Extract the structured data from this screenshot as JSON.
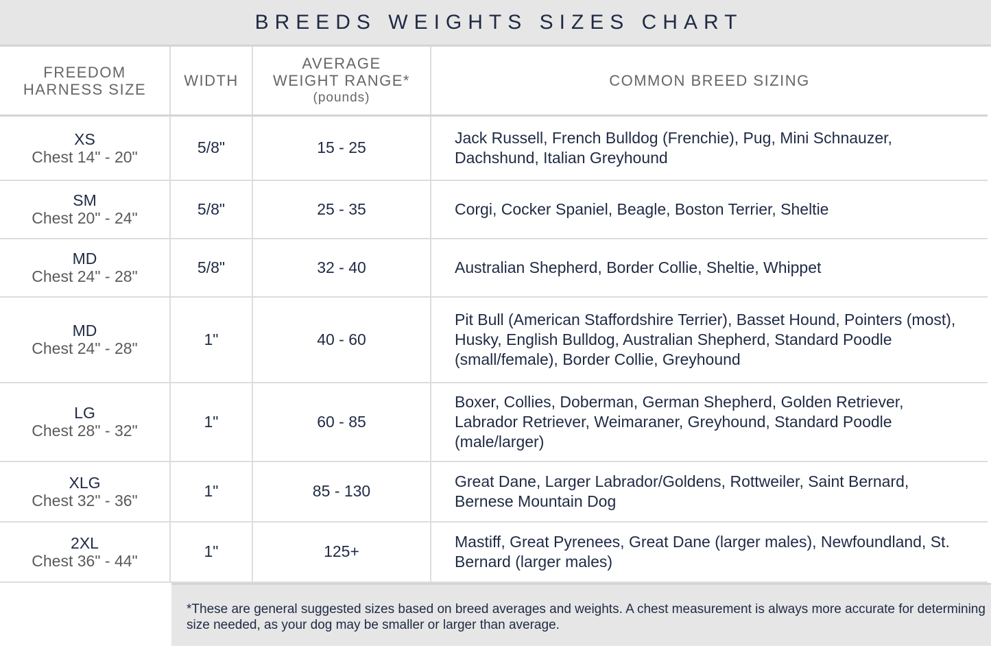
{
  "title": "BREEDS WEIGHTS SIZES CHART",
  "headers": {
    "size": [
      "FREEDOM",
      "HARNESS SIZE"
    ],
    "width": "WIDTH",
    "weight": [
      "AVERAGE",
      "WEIGHT RANGE*",
      "(pounds)"
    ],
    "breeds": "COMMON BREED SIZING"
  },
  "rows": [
    {
      "size": "XS",
      "chest": "Chest 14\" - 20\"",
      "width": "5/8\"",
      "weight": "15 - 25",
      "breeds": "Jack Russell, French Bulldog (Frenchie), Pug, Mini Schnauzer, Dachshund, Italian Greyhound"
    },
    {
      "size": "SM",
      "chest": "Chest 20\" - 24\"",
      "width": "5/8\"",
      "weight": "25 - 35",
      "breeds": "Corgi, Cocker Spaniel, Beagle, Boston Terrier, Sheltie"
    },
    {
      "size": "MD",
      "chest": "Chest 24\" - 28\"",
      "width": "5/8\"",
      "weight": "32 - 40",
      "breeds": "Australian Shepherd, Border Collie, Sheltie, Whippet"
    },
    {
      "size": "MD",
      "chest": "Chest 24\" - 28\"",
      "width": "1\"",
      "weight": "40 - 60",
      "breeds": "Pit Bull (American Staffordshire Terrier), Basset Hound, Pointers (most), Husky, English Bulldog, Australian Shepherd, Standard Poodle (small/female), Border Collie, Greyhound"
    },
    {
      "size": "LG",
      "chest": "Chest 28\" - 32\"",
      "width": "1\"",
      "weight": "60 - 85",
      "breeds": "Boxer, Collies, Doberman, German Shepherd, Golden Retriever, Labrador Retriever, Weimaraner, Greyhound, Standard Poodle (male/larger)"
    },
    {
      "size": "XLG",
      "chest": "Chest 32\" - 36\"",
      "width": "1\"",
      "weight": "85 - 130",
      "breeds": "Great Dane, Larger Labrador/Goldens, Rottweiler, Saint Bernard, Bernese Mountain Dog"
    },
    {
      "size": "2XL",
      "chest": "Chest 36\" - 44\"",
      "width": "1\"",
      "weight": "125+",
      "breeds": "Mastiff, Great Pyrenees, Great Dane (larger males), Newfoundland, St. Bernard (larger males)"
    }
  ],
  "footnote": "*These are general suggested sizes based on breed averages and weights.  A chest measurement is always more accurate for determining size needed, as your dog may be smaller or larger than average."
}
